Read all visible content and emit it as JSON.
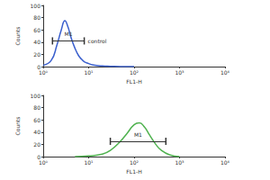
{
  "chart_data": [
    {
      "type": "line",
      "log": "x",
      "xlabel": "FL1-H",
      "ylabel": "Counts",
      "x": [
        1,
        1.5,
        2,
        2.5,
        3,
        3.5,
        4,
        5,
        6,
        7,
        8,
        10,
        12,
        15,
        20,
        30,
        50,
        100
      ],
      "values": [
        2,
        10,
        35,
        60,
        75,
        65,
        50,
        30,
        18,
        12,
        8,
        5,
        3,
        2,
        1,
        0.5,
        0,
        0
      ],
      "color": "#3a5fcd",
      "xlim": [
        1,
        10000
      ],
      "xticks": [
        {
          "value": 1,
          "label": "10⁰"
        },
        {
          "value": 10,
          "label": "10¹"
        },
        {
          "value": 100,
          "label": "10²"
        },
        {
          "value": 1000,
          "label": "10³"
        },
        {
          "value": 10000,
          "label": "10⁴"
        }
      ],
      "ylim": [
        0,
        100
      ],
      "yticks": [
        0,
        20,
        40,
        60,
        80,
        100
      ],
      "gates": [
        {
          "label": "M1",
          "range": [
            1.6,
            8
          ],
          "y": 42,
          "note": "control"
        }
      ]
    },
    {
      "type": "line",
      "log": "x",
      "xlabel": "FL1-H",
      "ylabel": "Counts",
      "x": [
        5,
        10,
        20,
        30,
        50,
        70,
        100,
        130,
        170,
        220,
        300,
        400,
        600,
        1000
      ],
      "values": [
        0,
        1,
        4,
        10,
        25,
        38,
        52,
        55,
        48,
        35,
        20,
        10,
        3,
        0
      ],
      "color": "#4fb24f",
      "xlim": [
        1,
        10000
      ],
      "xticks": [
        {
          "value": 1,
          "label": "10⁰"
        },
        {
          "value": 10,
          "label": "10¹"
        },
        {
          "value": 100,
          "label": "10²"
        },
        {
          "value": 1000,
          "label": "10³"
        },
        {
          "value": 10000,
          "label": "10⁴"
        }
      ],
      "ylim": [
        0,
        100
      ],
      "yticks": [
        0,
        20,
        40,
        60,
        80,
        100
      ],
      "gates": [
        {
          "label": "M1",
          "range": [
            30,
            500
          ],
          "y": 25
        }
      ]
    }
  ]
}
